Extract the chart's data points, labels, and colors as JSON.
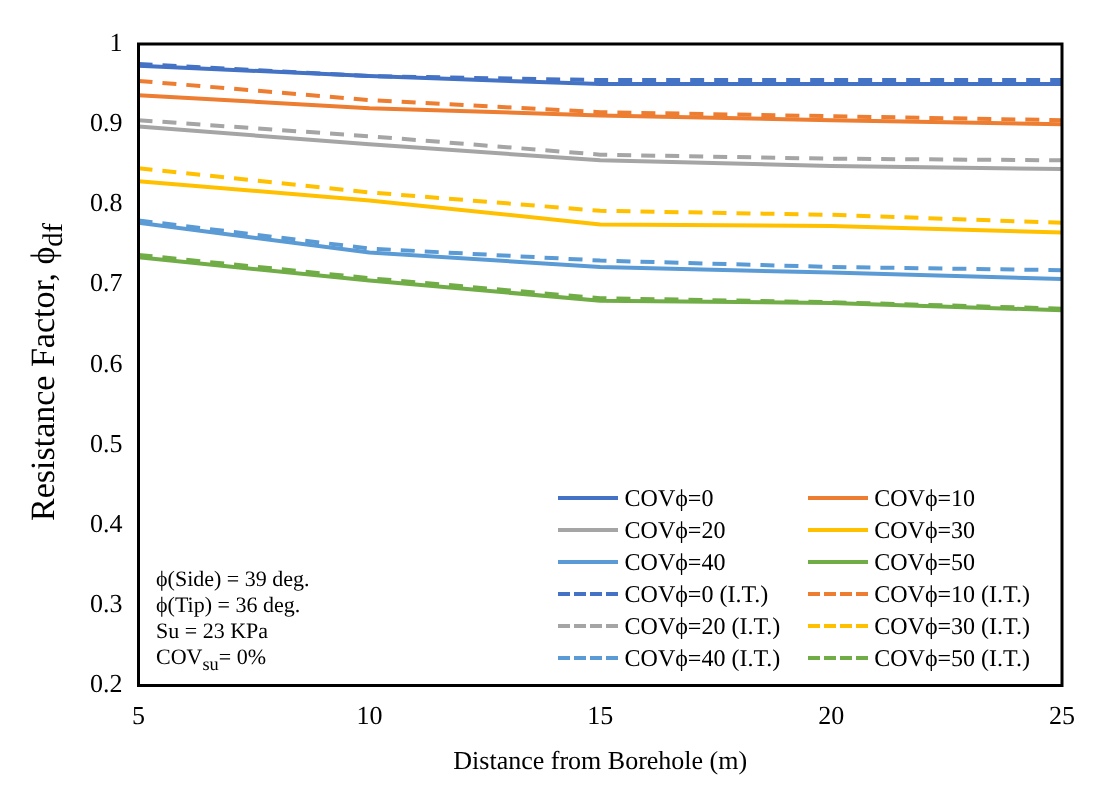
{
  "chart_data": {
    "type": "line",
    "xlabel": "Distance from Borehole (m)",
    "ylabel": "Resistance Factor, ϕ$_{df}$",
    "x": [
      5,
      10,
      15,
      20,
      25
    ],
    "xlim": [
      5,
      25
    ],
    "xticks": [
      5,
      10,
      15,
      20,
      25
    ],
    "ylim": [
      0.2,
      1
    ],
    "yticks": [
      0.2,
      0.3,
      0.4,
      0.5,
      0.6,
      0.7,
      0.8,
      0.9,
      1
    ],
    "grid": false,
    "legend": "bottom right",
    "marker": "none",
    "annotations": [
      "ϕ(Side) = 39 deg.",
      "ϕ(Tip) = 36 deg.",
      "Su = 23 KPa",
      "COV$_{su}$= 0%"
    ],
    "series": [
      {
        "name": "COVϕ=0",
        "color": "#4472c4",
        "line_style": "solid",
        "values": [
          0.973,
          0.96,
          0.95,
          0.95,
          0.95
        ]
      },
      {
        "name": "COVϕ=10",
        "color": "#ed7d31",
        "line_style": "solid",
        "values": [
          0.936,
          0.92,
          0.911,
          0.905,
          0.9
        ]
      },
      {
        "name": "COVϕ=20",
        "color": "#a5a5a5",
        "line_style": "solid",
        "values": [
          0.897,
          0.875,
          0.855,
          0.848,
          0.844
        ]
      },
      {
        "name": "COVϕ=30",
        "color": "#ffc000",
        "line_style": "solid",
        "values": [
          0.829,
          0.805,
          0.775,
          0.773,
          0.765
        ]
      },
      {
        "name": "COVϕ=40",
        "color": "#5b9bd5",
        "line_style": "solid",
        "values": [
          0.777,
          0.74,
          0.722,
          0.715,
          0.707
        ]
      },
      {
        "name": "COVϕ=50",
        "color": "#70ad47",
        "line_style": "solid",
        "values": [
          0.734,
          0.705,
          0.68,
          0.677,
          0.668
        ]
      },
      {
        "name": "COVϕ=0 (I.T.)",
        "color": "#4472c4",
        "line_style": "dashed",
        "values": [
          0.975,
          0.96,
          0.955,
          0.955,
          0.955
        ]
      },
      {
        "name": "COVϕ=10 (I.T.)",
        "color": "#ed7d31",
        "line_style": "dashed",
        "values": [
          0.954,
          0.93,
          0.915,
          0.91,
          0.905
        ]
      },
      {
        "name": "COVϕ=20 (I.T.)",
        "color": "#a5a5a5",
        "line_style": "dashed",
        "values": [
          0.905,
          0.885,
          0.862,
          0.857,
          0.855
        ]
      },
      {
        "name": "COVϕ=30 (I.T.)",
        "color": "#ffc000",
        "line_style": "dashed",
        "values": [
          0.845,
          0.815,
          0.792,
          0.787,
          0.777
        ]
      },
      {
        "name": "COVϕ=40 (I.T.)",
        "color": "#5b9bd5",
        "line_style": "dashed",
        "values": [
          0.78,
          0.745,
          0.73,
          0.722,
          0.718
        ]
      },
      {
        "name": "COVϕ=50 (I.T.)",
        "color": "#70ad47",
        "line_style": "dashed",
        "values": [
          0.737,
          0.708,
          0.683,
          0.678,
          0.67
        ]
      }
    ]
  }
}
